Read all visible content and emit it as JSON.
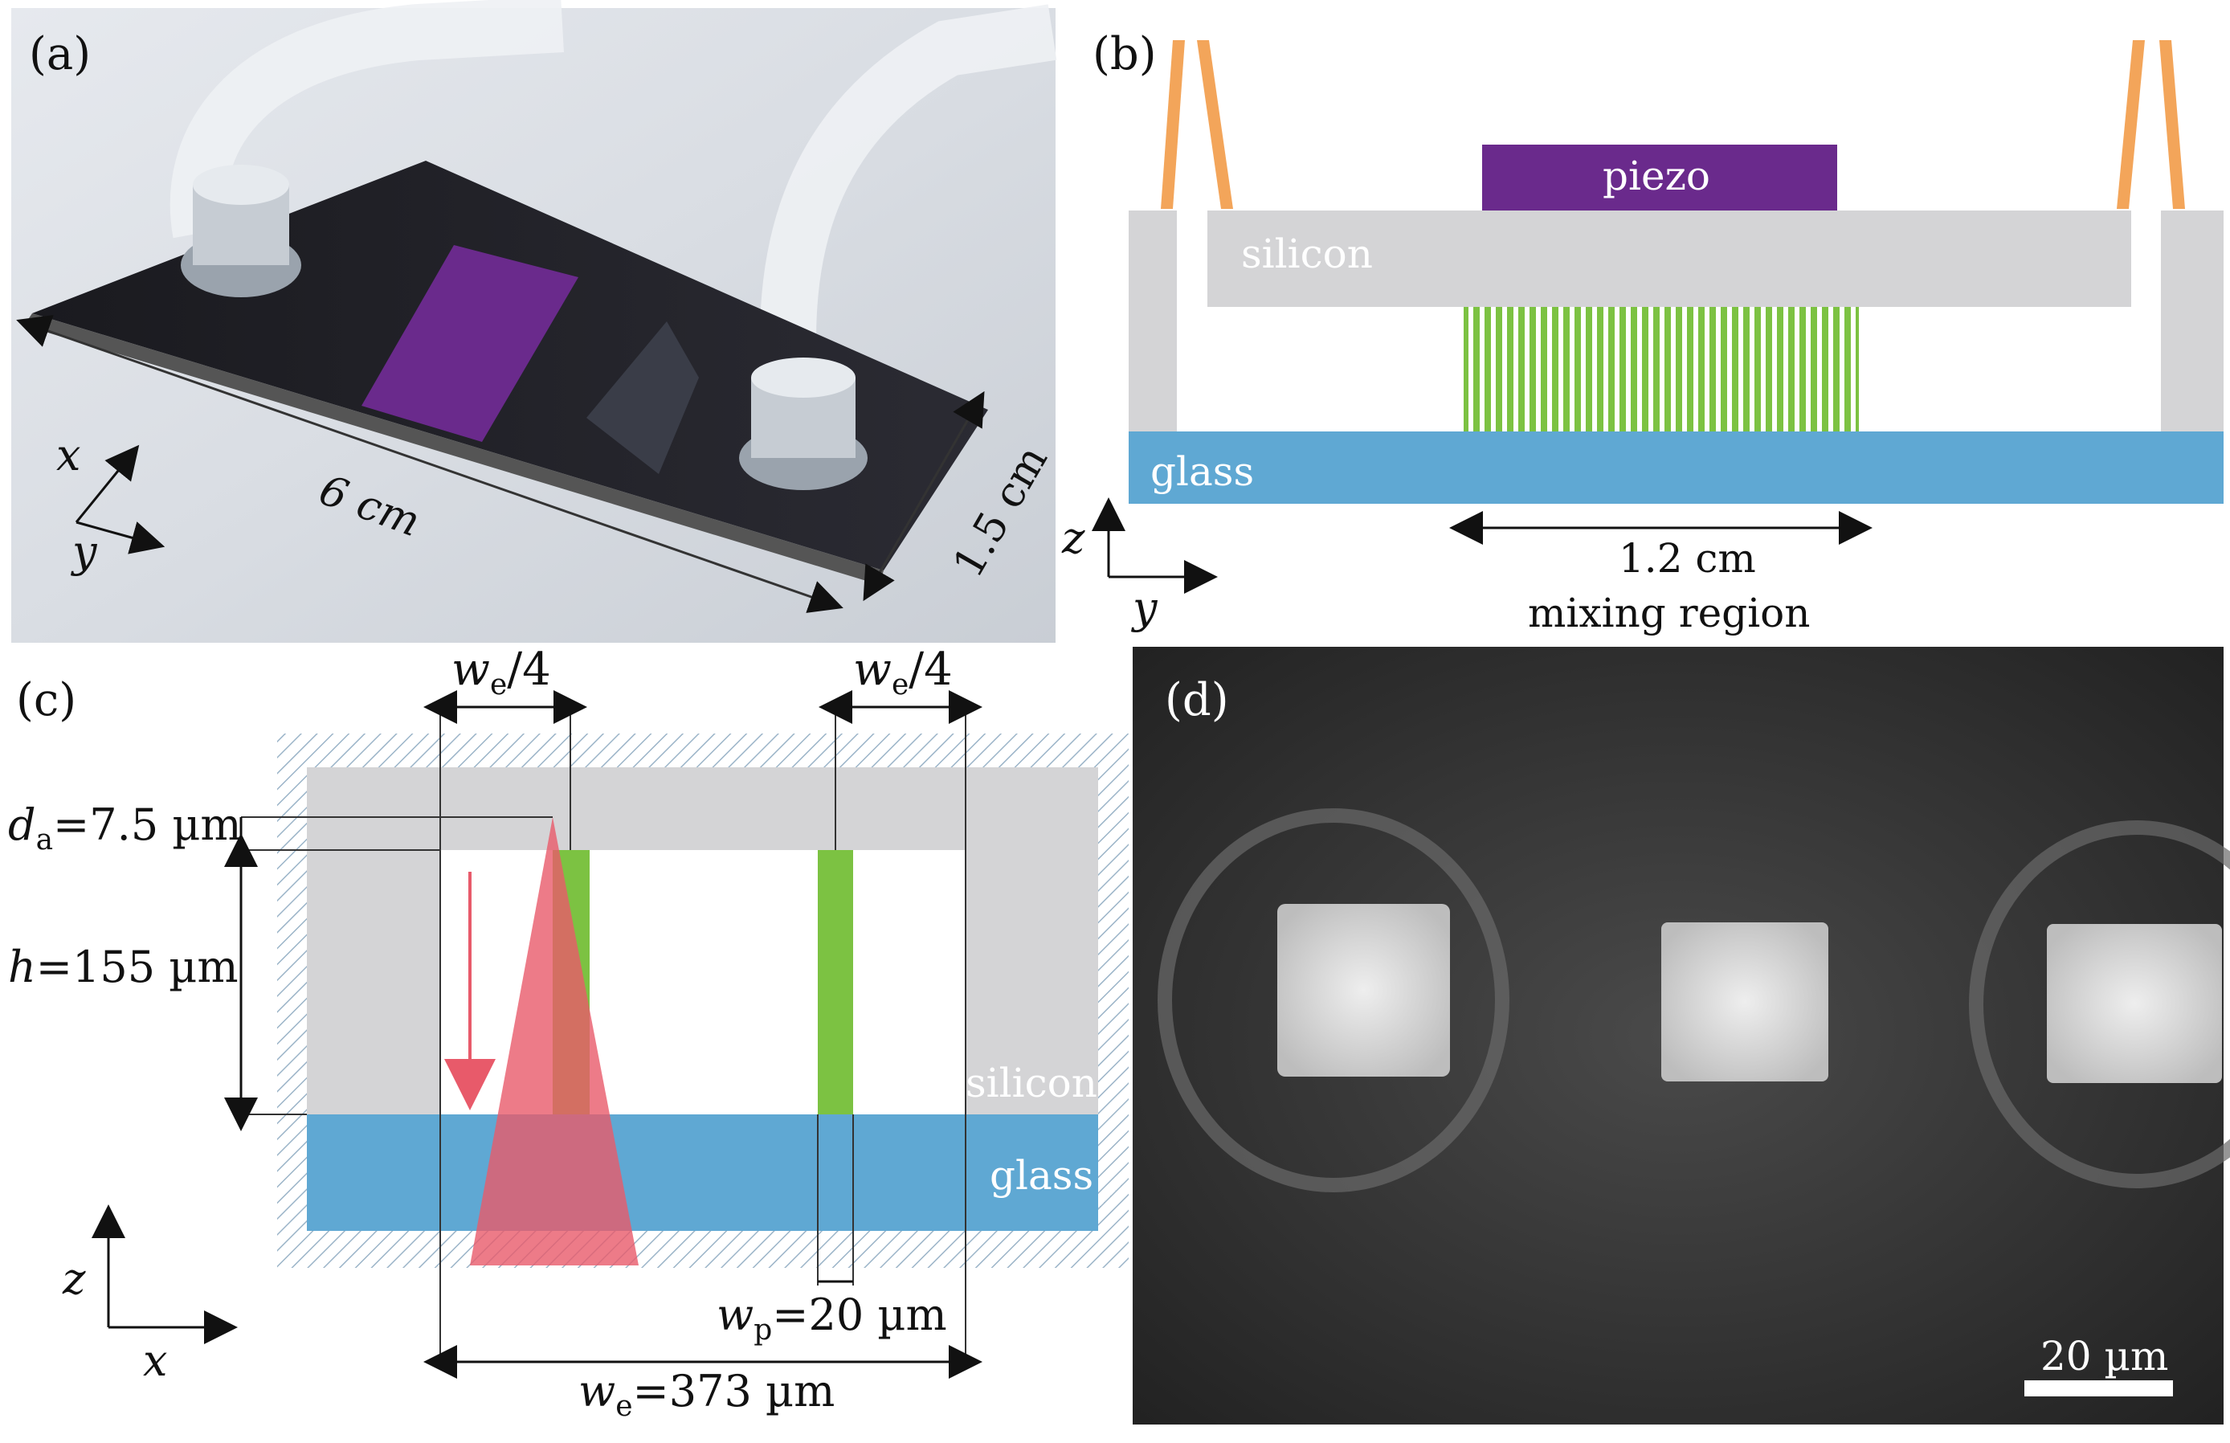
{
  "panel_a": {
    "label": "(a)",
    "length_label": "6 cm",
    "width_label": "1.5 cm",
    "axis_x": "x",
    "axis_y": "y"
  },
  "panel_b": {
    "label": "(b)",
    "piezo_label": "piezo",
    "silicon_label": "silicon",
    "glass_label": "glass",
    "dimension_label": "1.2 cm",
    "region_label": "mixing region",
    "axis_z": "z",
    "axis_y": "y"
  },
  "panel_c": {
    "label": "(c)",
    "we_quarter_label": "/4",
    "we_label": "w",
    "e_sub": "e",
    "da_label": "d",
    "a_sub": "a",
    "da_value": "=7.5 µm",
    "h_label": "h",
    "h_value": "=155 µm",
    "wp_label": "w",
    "p_sub": "p",
    "wp_value": "=20 µm",
    "we_value": "=373 µm",
    "silicon_label": "silicon",
    "glass_label": "glass",
    "axis_z": "z",
    "axis_x": "x"
  },
  "panel_d": {
    "label": "(d)",
    "scale_label": "20 µm"
  },
  "colors": {
    "silicon": "#d4d4d6",
    "glass": "#5fa8d3",
    "piezo": "#6a2a8c",
    "electrode": "#7cc242",
    "tube": "#f3a55a",
    "laser": "#e85a6a"
  }
}
